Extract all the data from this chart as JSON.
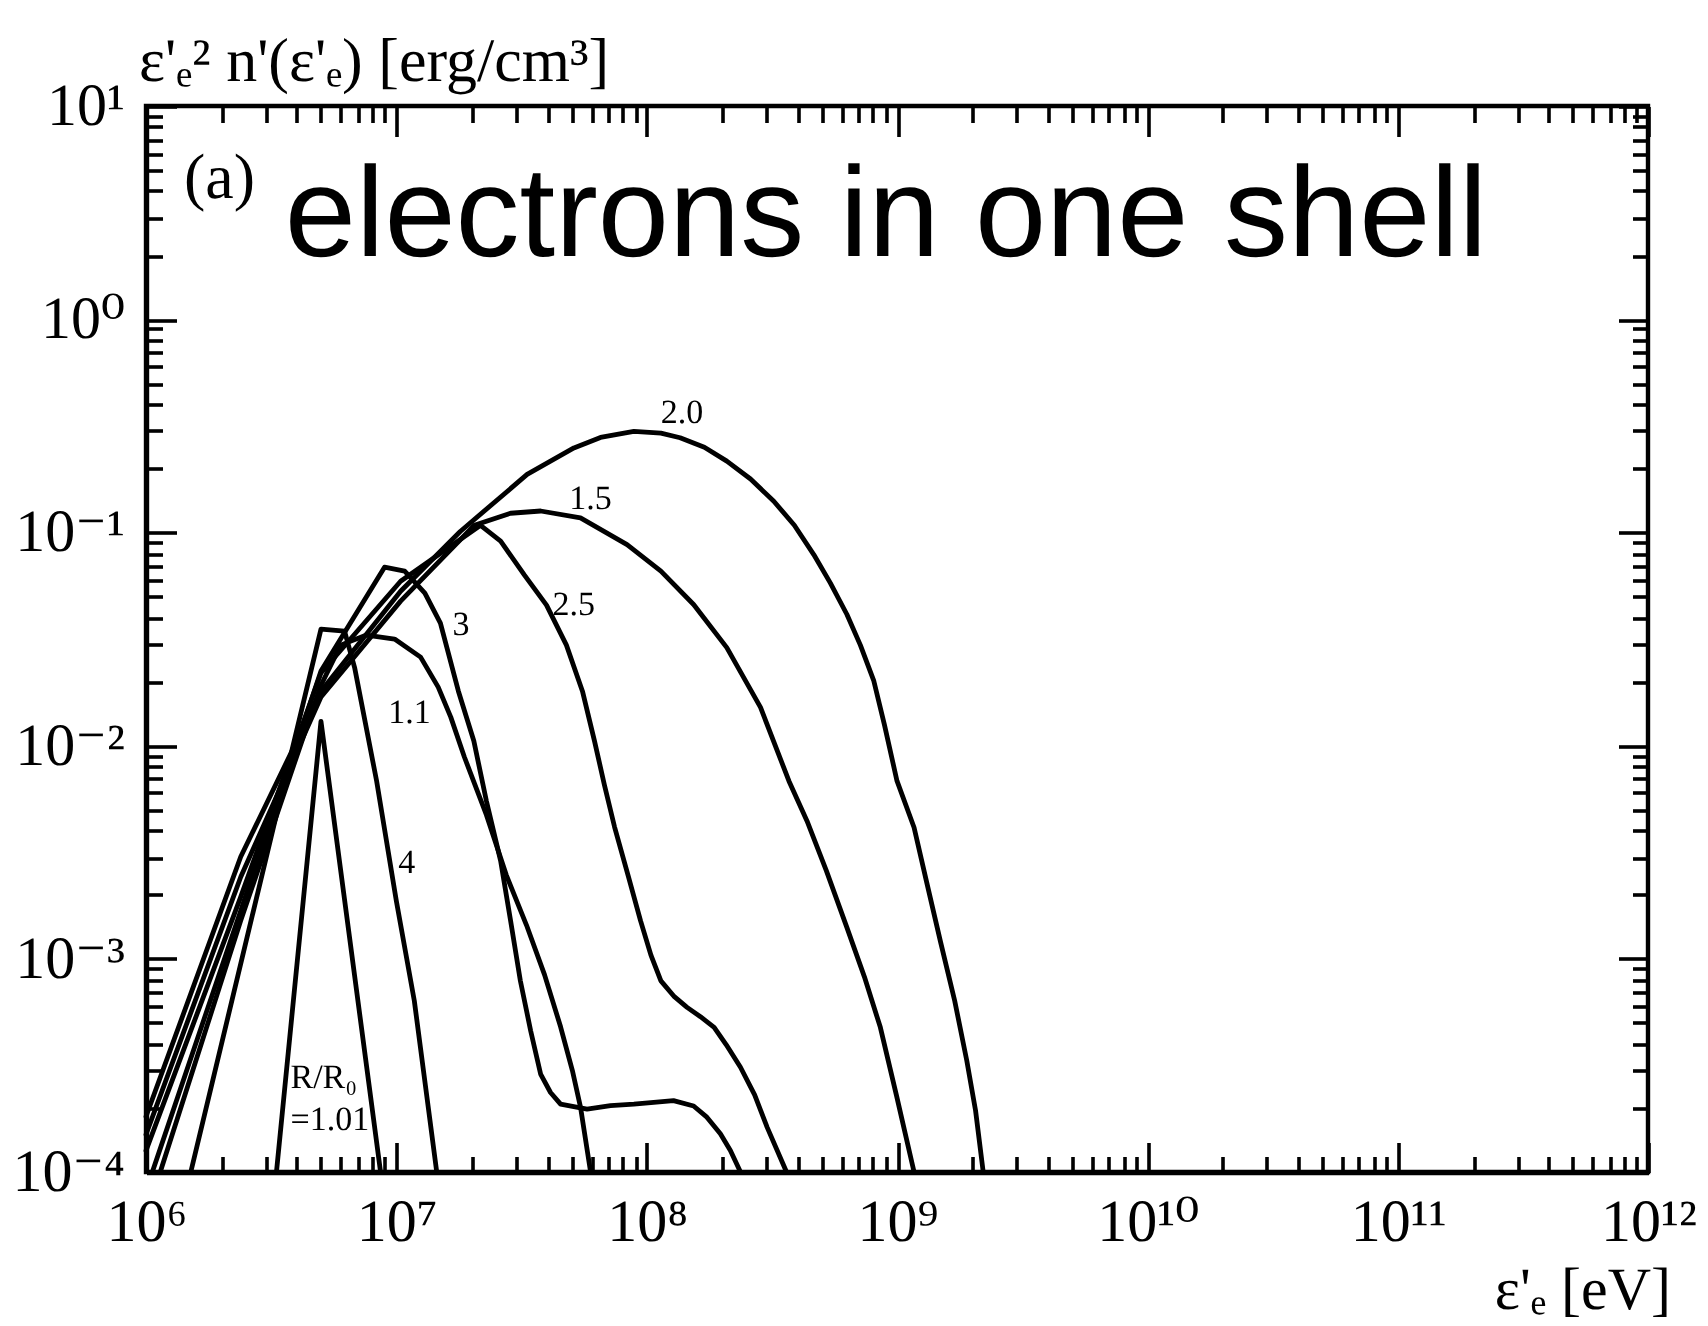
{
  "chart_data": {
    "type": "line",
    "title": "electrons in one shell",
    "ylabel": "ε'ₑ² n'(ε'ₑ) [erg/cm³]",
    "xlabel": "ε'ₑ [eV]",
    "annotations": [
      "(a)"
    ],
    "log": "xy",
    "xlim": [
      1000000.0,
      1000000000000.0
    ],
    "ylim": [
      0.0001,
      10
    ],
    "xticks": [
      {
        "value": 1000000.0,
        "label": "10⁶"
      },
      {
        "value": 2000000.0,
        "label": null
      },
      {
        "value": 3000000.0,
        "label": null
      },
      {
        "value": 4000000.0,
        "label": null
      },
      {
        "value": 5000000.0,
        "label": null
      },
      {
        "value": 6000000.0,
        "label": null
      },
      {
        "value": 7000000.0,
        "label": null
      },
      {
        "value": 8000000.0,
        "label": null
      },
      {
        "value": 9000000.0,
        "label": null
      },
      {
        "value": 10000000.0,
        "label": "10⁷"
      },
      {
        "value": 20000000.0,
        "label": null
      },
      {
        "value": 30000000.0,
        "label": null
      },
      {
        "value": 40000000.0,
        "label": null
      },
      {
        "value": 50000000.0,
        "label": null
      },
      {
        "value": 60000000.0,
        "label": null
      },
      {
        "value": 70000000.0,
        "label": null
      },
      {
        "value": 80000000.0,
        "label": null
      },
      {
        "value": 90000000.0,
        "label": null
      },
      {
        "value": 100000000.0,
        "label": "10⁸"
      },
      {
        "value": 200000000.0,
        "label": null
      },
      {
        "value": 300000000.0,
        "label": null
      },
      {
        "value": 400000000.0,
        "label": null
      },
      {
        "value": 500000000.0,
        "label": null
      },
      {
        "value": 600000000.0,
        "label": null
      },
      {
        "value": 700000000.0,
        "label": null
      },
      {
        "value": 800000000.0,
        "label": null
      },
      {
        "value": 900000000.0,
        "label": null
      },
      {
        "value": 1000000000.0,
        "label": "10⁹"
      },
      {
        "value": 2000000000.0,
        "label": null
      },
      {
        "value": 3000000000.0,
        "label": null
      },
      {
        "value": 4000000000.0,
        "label": null
      },
      {
        "value": 5000000000.0,
        "label": null
      },
      {
        "value": 6000000000.0,
        "label": null
      },
      {
        "value": 7000000000.0,
        "label": null
      },
      {
        "value": 8000000000.0,
        "label": null
      },
      {
        "value": 9000000000.0,
        "label": null
      },
      {
        "value": 10000000000.0,
        "label": "10¹⁰"
      },
      {
        "value": 20000000000.0,
        "label": null
      },
      {
        "value": 30000000000.0,
        "label": null
      },
      {
        "value": 40000000000.0,
        "label": null
      },
      {
        "value": 50000000000.0,
        "label": null
      },
      {
        "value": 60000000000.0,
        "label": null
      },
      {
        "value": 70000000000.0,
        "label": null
      },
      {
        "value": 80000000000.0,
        "label": null
      },
      {
        "value": 90000000000.0,
        "label": null
      },
      {
        "value": 100000000000.0,
        "label": "10¹¹"
      },
      {
        "value": 200000000000.0,
        "label": null
      },
      {
        "value": 300000000000.0,
        "label": null
      },
      {
        "value": 400000000000.0,
        "label": null
      },
      {
        "value": 500000000000.0,
        "label": null
      },
      {
        "value": 600000000000.0,
        "label": null
      },
      {
        "value": 700000000000.0,
        "label": null
      },
      {
        "value": 800000000000.0,
        "label": null
      },
      {
        "value": 900000000000.0,
        "label": null
      },
      {
        "value": 1000000000000.0,
        "label": "10¹²"
      }
    ],
    "yticks": [
      {
        "value": 0.0001,
        "label": "10⁻⁴"
      },
      {
        "value": 0.0002,
        "label": null
      },
      {
        "value": 0.0003,
        "label": null
      },
      {
        "value": 0.0004,
        "label": null
      },
      {
        "value": 0.0005,
        "label": null
      },
      {
        "value": 0.0006,
        "label": null
      },
      {
        "value": 0.0007,
        "label": null
      },
      {
        "value": 0.0008,
        "label": null
      },
      {
        "value": 0.0009,
        "label": null
      },
      {
        "value": 0.001,
        "label": "10⁻³"
      },
      {
        "value": 0.002,
        "label": null
      },
      {
        "value": 0.003,
        "label": null
      },
      {
        "value": 0.004,
        "label": null
      },
      {
        "value": 0.005,
        "label": null
      },
      {
        "value": 0.006,
        "label": null
      },
      {
        "value": 0.007,
        "label": null
      },
      {
        "value": 0.008,
        "label": null
      },
      {
        "value": 0.009,
        "label": null
      },
      {
        "value": 0.01,
        "label": "10⁻²"
      },
      {
        "value": 0.02,
        "label": null
      },
      {
        "value": 0.03,
        "label": null
      },
      {
        "value": 0.04,
        "label": null
      },
      {
        "value": 0.05,
        "label": null
      },
      {
        "value": 0.06,
        "label": null
      },
      {
        "value": 0.07,
        "label": null
      },
      {
        "value": 0.08,
        "label": null
      },
      {
        "value": 0.09,
        "label": null
      },
      {
        "value": 0.1,
        "label": "10⁻¹"
      },
      {
        "value": 0.2,
        "label": null
      },
      {
        "value": 0.3,
        "label": null
      },
      {
        "value": 0.4,
        "label": null
      },
      {
        "value": 0.5,
        "label": null
      },
      {
        "value": 0.6,
        "label": null
      },
      {
        "value": 0.7,
        "label": null
      },
      {
        "value": 0.8,
        "label": null
      },
      {
        "value": 0.9,
        "label": null
      },
      {
        "value": 1,
        "label": "10⁰"
      },
      {
        "value": 2,
        "label": null
      },
      {
        "value": 3,
        "label": null
      },
      {
        "value": 4,
        "label": null
      },
      {
        "value": 5,
        "label": null
      },
      {
        "value": 6,
        "label": null
      },
      {
        "value": 7,
        "label": null
      },
      {
        "value": 8,
        "label": null
      },
      {
        "value": 9,
        "label": null
      },
      {
        "value": 10,
        "label": "10¹"
      }
    ],
    "series": [
      {
        "name": "R/R₀\n=1.01",
        "color": "#000000",
        "x": [
          3320000.0,
          5000000.0,
          8650000.0
        ],
        "values": [
          0.0001,
          0.013,
          0.0001
        ]
      },
      {
        "name": "1.1",
        "color": "#000000",
        "x": [
          1140000.0,
          2390000.0,
          5000000.0,
          5990000.0,
          7600000.0,
          9840000.0,
          12500000.0,
          14700000.0,
          16500000.0,
          18700000.0,
          22900000.0,
          27500000.0,
          33100000.0,
          39100000.0,
          45300000.0,
          50500000.0,
          54400000.0,
          59700000.0
        ],
        "values": [
          0.0001,
          0.00151,
          0.0192,
          0.0296,
          0.033,
          0.0316,
          0.026,
          0.0188,
          0.0136,
          0.00884,
          0.00473,
          0.00247,
          0.00144,
          0.000841,
          0.00048,
          0.000299,
          0.000202,
          0.0001
        ]
      },
      {
        "name": "1.5",
        "color": "#000000",
        "x": [
          1000000.0,
          2390000.0,
          5000000.0,
          10400000.0,
          20500000.0,
          28600000.0,
          37700000.0,
          54400000.0,
          83500000.0,
          114000000.0,
          154000000.0,
          209000000.0,
          285000000.0,
          370000000.0,
          437000000.0,
          522000000.0,
          631000000.0,
          741000000.0,
          858000000.0,
          994000000.0,
          1170000000.0
        ],
        "values": [
          0.00015,
          0.00242,
          0.0169,
          0.0476,
          0.108,
          0.123,
          0.126,
          0.117,
          0.0877,
          0.0658,
          0.0459,
          0.0288,
          0.0151,
          0.00683,
          0.00443,
          0.00259,
          0.0014,
          0.000823,
          0.000477,
          0.00023,
          0.0001
        ]
      },
      {
        "name": "2.0",
        "color": "#000000",
        "x": [
          1000000.0,
          2390000.0,
          5000000.0,
          10400000.0,
          18000000.0,
          33300000.0,
          51200000.0,
          65400000.0,
          88900000.0,
          114000000.0,
          136000000.0,
          170000000.0,
          209000000.0,
          260000000.0,
          322000000.0,
          389000000.0,
          465000000.0,
          542000000.0,
          631000000.0,
          714000000.0,
          808000000.0,
          891000000.0,
          1000000000.0,
          1170000000.0,
          1310000000.0,
          1490000000.0,
          1700000000.0,
          1900000000.0,
          2060000000.0,
          2210000000.0
        ],
        "values": [
          0.000182,
          0.00301,
          0.018,
          0.053,
          0.101,
          0.187,
          0.249,
          0.279,
          0.298,
          0.292,
          0.278,
          0.251,
          0.216,
          0.178,
          0.14,
          0.108,
          0.0787,
          0.0578,
          0.0412,
          0.0296,
          0.0201,
          0.0125,
          0.00683,
          0.00413,
          0.00232,
          0.00121,
          0.000636,
          0.000333,
          0.000194,
          0.0001
        ]
      },
      {
        "name": "2.5",
        "color": "#000000",
        "x": [
          1000000.0,
          2390000.0,
          5000000.0,
          10400000.0,
          21700000.0,
          26100000.0,
          32500000.0,
          39800000.0,
          47800000.0,
          55400000.0,
          61900000.0,
          67800000.0,
          74400000.0,
          84600000.0,
          94500000.0,
          104000000.0,
          114000000.0,
          129000000.0,
          145000000.0,
          164000000.0,
          186000000.0,
          208000000.0,
          237000000.0,
          270000000.0,
          303000000.0,
          362000000.0
        ],
        "values": [
          0.000126,
          0.00195,
          0.0219,
          0.059,
          0.108,
          0.091,
          0.063,
          0.0456,
          0.0296,
          0.018,
          0.0105,
          0.00654,
          0.00416,
          0.00242,
          0.00151,
          0.00104,
          0.000788,
          0.000664,
          0.000592,
          0.000535,
          0.000477,
          0.000395,
          0.00031,
          0.00023,
          0.000162,
          0.0001
        ]
      },
      {
        "name": "3",
        "color": "#000000",
        "x": [
          1060000.0,
          2390000.0,
          5000000.0,
          8970000.0,
          10800000.0,
          13000000.0,
          15000000.0,
          17700000.0,
          20400000.0,
          22900000.0,
          26100000.0,
          28600000.0,
          31300000.0,
          34400000.0,
          37700000.0,
          41300000.0,
          45300000.0,
          57800000.0,
          71700000.0,
          88900000.0,
          128000000.0,
          154000000.0,
          173000000.0,
          197000000.0,
          216000000.0,
          237000000.0
        ],
        "values": [
          0.0001,
          0.00168,
          0.0224,
          0.0687,
          0.0658,
          0.0519,
          0.0375,
          0.018,
          0.0105,
          0.0055,
          0.00288,
          0.00151,
          0.000788,
          0.00046,
          0.000288,
          0.000236,
          0.000208,
          0.000197,
          0.000205,
          0.000208,
          0.000216,
          0.000204,
          0.000182,
          0.000151,
          0.000126,
          0.0001
        ]
      },
      {
        "name": "4",
        "color": "#000000",
        "x": [
          1510000.0,
          5000000.0,
          6210000.0,
          6810000.0,
          8340000.0,
          10000000.0,
          11800000.0,
          14500000.0
        ],
        "values": [
          0.0001,
          0.0352,
          0.0344,
          0.0233,
          0.00683,
          0.00187,
          0.000635,
          0.0001
        ]
      }
    ]
  }
}
